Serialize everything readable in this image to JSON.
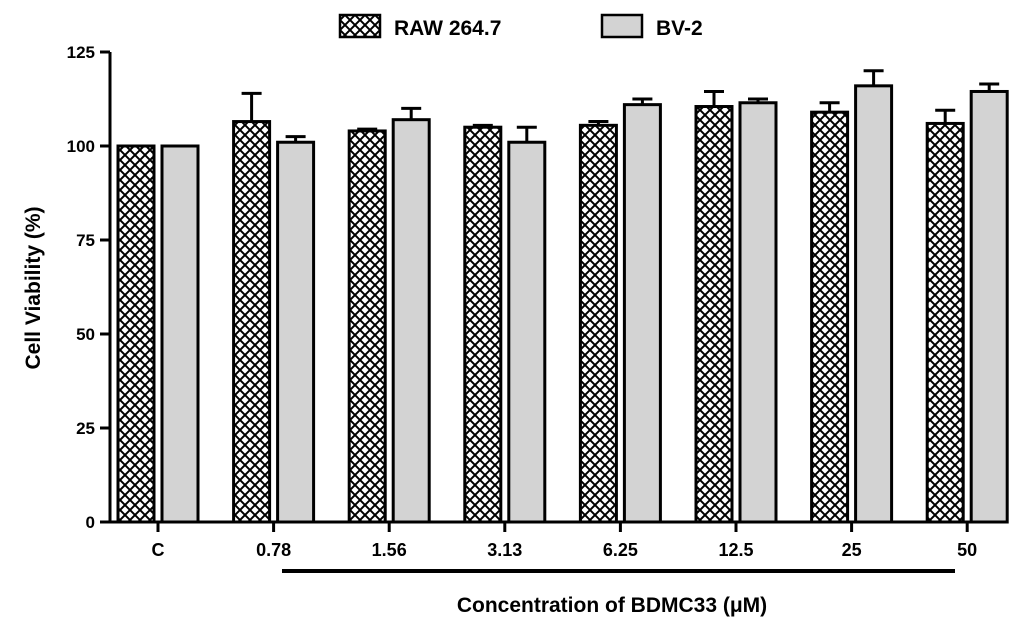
{
  "chart_data": {
    "type": "bar",
    "title": "",
    "xlabel": "Concentration of BDMC33 (μM)",
    "ylabel": "Cell Viability (%)",
    "ylim": [
      0,
      125
    ],
    "yticks": [
      "0",
      "25",
      "50",
      "75",
      "100",
      "125"
    ],
    "categories": [
      "C",
      "0.78",
      "1.56",
      "3.13",
      "6.25",
      "12.5",
      "25",
      "50"
    ],
    "legend_position": "top-center",
    "grid": false,
    "series": [
      {
        "name": "RAW 264.7",
        "fill": "crosshatch",
        "color": "#000000",
        "values": [
          100,
          106.5,
          104,
          105,
          105.5,
          110.5,
          109,
          106
        ],
        "errors": [
          0,
          7.5,
          0.5,
          0.5,
          1,
          4,
          2.5,
          3.5
        ]
      },
      {
        "name": "BV-2",
        "fill": "solid",
        "color": "#d3d3d3",
        "values": [
          100,
          101,
          107,
          101,
          111,
          111.5,
          116,
          114.5
        ],
        "errors": [
          0,
          1.5,
          3,
          4,
          1.5,
          1,
          4,
          2
        ]
      }
    ]
  }
}
